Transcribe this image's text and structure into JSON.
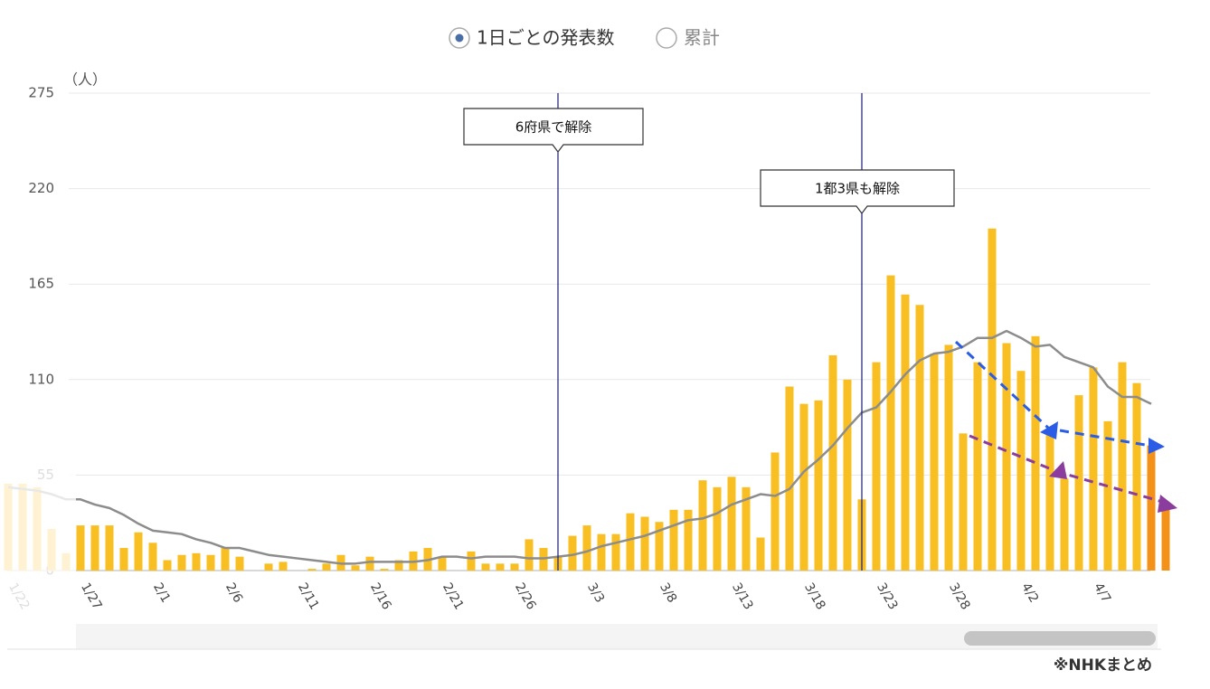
{
  "chart_data": {
    "type": "bar",
    "controls": [
      "1日ごとの発表数",
      "累計"
    ],
    "y_label": "（人）",
    "source": "※NHKまとめ",
    "annotations": [
      "6府県で解除",
      "1都3県も解除"
    ],
    "categories": [
      "1/22",
      null,
      null,
      null,
      null,
      "1/27",
      null,
      null,
      null,
      null,
      "2/1",
      null,
      null,
      null,
      null,
      "2/6",
      null,
      null,
      null,
      null,
      "2/11",
      null,
      null,
      null,
      null,
      "2/16",
      null,
      null,
      null,
      null,
      "2/21",
      null,
      null,
      null,
      null,
      "2/26",
      null,
      null,
      null,
      null,
      "3/3",
      null,
      null,
      null,
      null,
      "3/8",
      null,
      null,
      null,
      null,
      "3/13",
      null,
      null,
      null,
      null,
      "3/18",
      null,
      null,
      null,
      null,
      "3/23",
      null,
      null,
      null,
      null,
      "3/28",
      null,
      null,
      null,
      null,
      "4/2",
      null,
      null,
      null,
      null,
      "4/7",
      null,
      null,
      null,
      null,
      null
    ],
    "series": [
      {
        "type": "bar",
        "color": "#f9bf22",
        "values": [
          50,
          50,
          48,
          24,
          10,
          26,
          26,
          26,
          13,
          22,
          16,
          6,
          9,
          10,
          9,
          13,
          8,
          0,
          4,
          5,
          0,
          1,
          4,
          9,
          3,
          8,
          1,
          6,
          11,
          13,
          8,
          0,
          11,
          4,
          4,
          4,
          18,
          13,
          8,
          20,
          26,
          21,
          21,
          33,
          31,
          28,
          35,
          35,
          52,
          48,
          54,
          48,
          19,
          68,
          106,
          96,
          98,
          124,
          110,
          41,
          120,
          170,
          159,
          153,
          125,
          130,
          79,
          120,
          197,
          131,
          115,
          135,
          80,
          53,
          101,
          117,
          86,
          120,
          108,
          72,
          36
        ],
        "colors": [
          "#f9bf22",
          "#f9bf22",
          "#f9bf22",
          "#f9bf22",
          "#f9bf22",
          "#f9bf22",
          "#f9bf22",
          "#f9bf22",
          "#f9bf22",
          "#f9bf22",
          "#f9bf22",
          "#f9bf22",
          "#f9bf22",
          "#f9bf22",
          "#f9bf22",
          "#f9bf22",
          "#f9bf22",
          "#f9bf22",
          "#f9bf22",
          "#f9bf22",
          "#f9bf22",
          "#f9bf22",
          "#f9bf22",
          "#f9bf22",
          "#f9bf22",
          "#f9bf22",
          "#f9bf22",
          "#f9bf22",
          "#f9bf22",
          "#f9bf22",
          "#f9bf22",
          "#f9bf22",
          "#f9bf22",
          "#f9bf22",
          "#f9bf22",
          "#f9bf22",
          "#f9bf22",
          "#f9bf22",
          "#f9bf22",
          "#f9bf22",
          "#f9bf22",
          "#f9bf22",
          "#f9bf22",
          "#f9bf22",
          "#f9bf22",
          "#f9bf22",
          "#f9bf22",
          "#f9bf22",
          "#f9bf22",
          "#f9bf22",
          "#f9bf22",
          "#f9bf22",
          "#f9bf22",
          "#f9bf22",
          "#f9bf22",
          "#f9bf22",
          "#f9bf22",
          "#f9bf22",
          "#f9bf22",
          "#f9bf22",
          "#f9bf22",
          "#f9bf22",
          "#f9bf22",
          "#f9bf22",
          "#f9bf22",
          "#f9bf22",
          "#f9bf22",
          "#f9bf22",
          "#f9bf22",
          "#f9bf22",
          "#f9bf22",
          "#f9bf22",
          "#f9bf22",
          "#f9bf22",
          "#f9bf22",
          "#f9bf22",
          "#f9bf22",
          "#f9bf22",
          "#f9bf22",
          "#f39119",
          "#f39119"
        ]
      },
      {
        "type": "line",
        "color": "#8c8c8c",
        "values": [
          48,
          47,
          46,
          44,
          41,
          41,
          38,
          36,
          32,
          27,
          23,
          22,
          21,
          18,
          16,
          13,
          13,
          11,
          9,
          8,
          7,
          6,
          5,
          4,
          4,
          5,
          5,
          5,
          5,
          6,
          8,
          8,
          7,
          8,
          8,
          8,
          7,
          7,
          8,
          9,
          11,
          14,
          16,
          18,
          20,
          23,
          26,
          29,
          30,
          33,
          38,
          41,
          44,
          43,
          47,
          57,
          64,
          72,
          82,
          91,
          94,
          103,
          113,
          121,
          125,
          126,
          129,
          134,
          134,
          138,
          134,
          129,
          130,
          123,
          120,
          117,
          106,
          100,
          100,
          96,
          null
        ]
      }
    ],
    "ylim": [
      0,
      275
    ],
    "yticks": [
      0,
      55,
      110,
      165,
      220,
      275
    ],
    "grid": true
  }
}
